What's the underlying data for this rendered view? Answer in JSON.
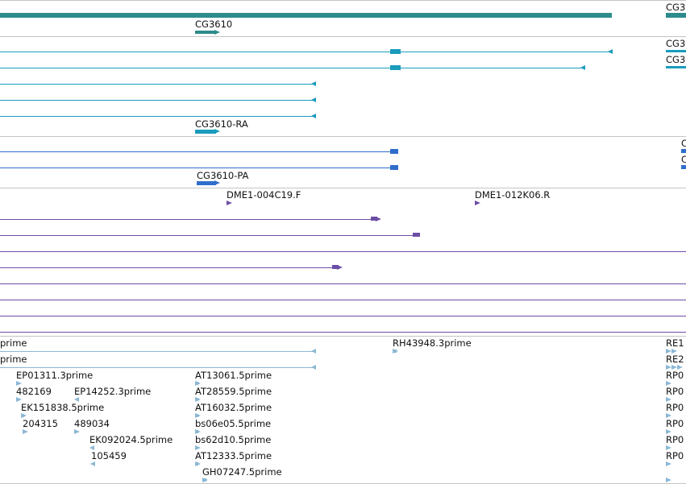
{
  "colors": {
    "gene": "#2e8b8b",
    "transcript": "#1a9cbc",
    "protein": "#2f6ecb",
    "clone": "#6c4fa5",
    "est": "#8cb8d6",
    "separator": "#c4c4c4",
    "text": "#111111"
  },
  "tracks": {
    "gene": {
      "labels": [
        "CG3610",
        "CG3"
      ]
    },
    "transcript": {
      "labels": [
        "CG3",
        "CG3",
        "CG3610-RA"
      ]
    },
    "protein": {
      "labels": [
        "C",
        "C",
        "CG3610-PA"
      ]
    },
    "clone": {
      "labels": [
        "DME1-004C19.F",
        "DME1-012K06.R"
      ]
    },
    "est": {
      "labels": [
        "prime",
        "prime",
        "RH43948.3prime",
        "RE1",
        "RE2",
        "EP01311.3prime",
        "AT13061.5prime",
        "RP0",
        "482169",
        "EP14252.3prime",
        "AT28559.5prime",
        "RP0",
        "EK151838.5prime",
        "AT16032.5prime",
        "RP0",
        "204315",
        "489034",
        "bs06e05.5prime",
        "RP0",
        "EK092024.5prime",
        "bs62d10.5prime",
        "RP0",
        "105459",
        "AT12333.5prime",
        "RP0",
        "GH07247.5prime"
      ]
    }
  }
}
